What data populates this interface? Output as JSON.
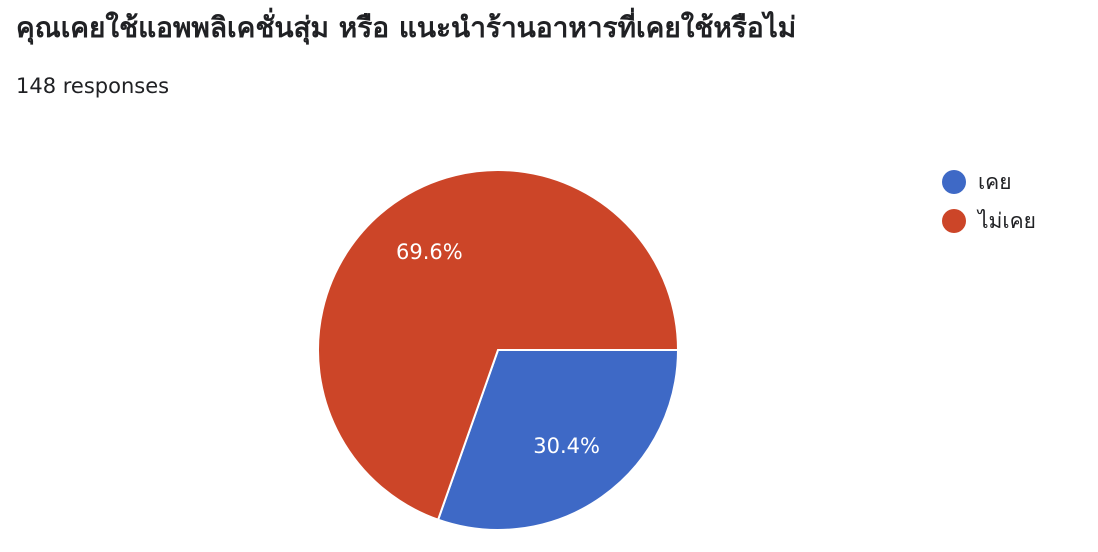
{
  "header": {
    "title": "คุณเคยใช้แอพพลิเคชั่นสุ่ม หรือ แนะนำร้านอาหารที่เคยใช้หรือไม่",
    "responses": "148 responses"
  },
  "chart_data": {
    "type": "pie",
    "categories": [
      "เคย",
      "ไม่เคย"
    ],
    "values": [
      30.4,
      69.6
    ],
    "labels": [
      "30.4%",
      "69.6%"
    ],
    "colors": [
      "#3e69c6",
      "#cc4528"
    ],
    "legend_position": "right"
  }
}
